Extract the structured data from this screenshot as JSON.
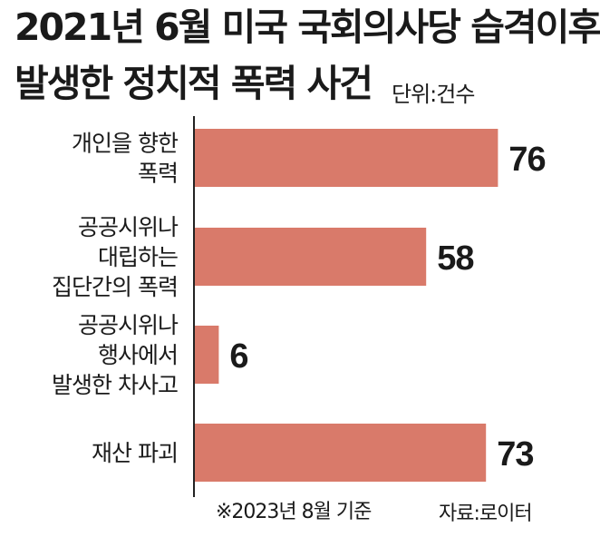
{
  "header": {
    "title_line1": "2021년 6월 미국 국회의사당 습격이후",
    "title_line2": "발생한 정치적 폭력 사건",
    "unit": "단위:건수"
  },
  "footer": {
    "note": "※2023년 8월 기준",
    "source": "자료:로이터"
  },
  "colors": {
    "bar": "#d97a6a",
    "text": "#1a1a1a",
    "axis": "#222222"
  },
  "chart_data": {
    "type": "bar",
    "orientation": "horizontal",
    "categories": [
      [
        "개인을 향한",
        "폭력"
      ],
      [
        "공공시위나",
        "대립하는",
        "집단간의 폭력"
      ],
      [
        "공공시위나",
        "행사에서",
        "발생한 차사고"
      ],
      [
        "재산 파괴"
      ]
    ],
    "values": [
      76,
      58,
      6,
      73
    ],
    "value_labels": [
      "76",
      "58",
      "6",
      "73"
    ],
    "xlim": [
      0,
      100
    ]
  }
}
